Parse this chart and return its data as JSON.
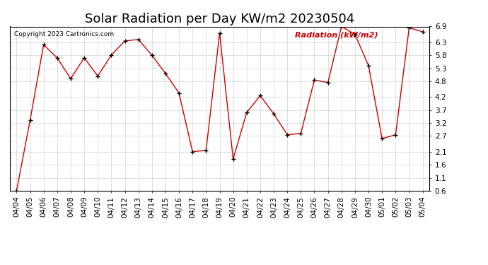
{
  "title": "Solar Radiation per Day KW/m2 20230504",
  "copyright": "Copyright 2023 Cartronics.com",
  "legend_label": "Radiation (kW/m2)",
  "dates": [
    "04/04",
    "04/05",
    "04/06",
    "04/07",
    "04/08",
    "04/09",
    "04/10",
    "04/11",
    "04/12",
    "04/13",
    "04/14",
    "04/15",
    "04/16",
    "04/17",
    "04/18",
    "04/19",
    "04/20",
    "04/21",
    "04/22",
    "04/23",
    "04/24",
    "04/25",
    "04/26",
    "04/27",
    "04/28",
    "04/29",
    "04/30",
    "05/01",
    "05/02",
    "05/03",
    "05/04"
  ],
  "values": [
    0.6,
    3.3,
    6.2,
    5.7,
    4.9,
    5.7,
    5.0,
    5.8,
    6.35,
    6.4,
    5.8,
    5.1,
    4.35,
    2.1,
    2.15,
    6.65,
    1.82,
    3.6,
    4.25,
    3.55,
    2.75,
    2.8,
    4.85,
    4.75,
    6.9,
    6.6,
    5.4,
    2.6,
    2.75,
    6.85,
    6.7
  ],
  "ylim": [
    0.6,
    6.9
  ],
  "yticks": [
    0.6,
    1.1,
    1.6,
    2.1,
    2.7,
    3.2,
    3.7,
    4.2,
    4.8,
    5.3,
    5.8,
    6.3,
    6.9
  ],
  "line_color": "#cc0000",
  "marker_color": "#000000",
  "background_color": "#ffffff",
  "grid_color": "#bbbbbb",
  "title_fontsize": 13,
  "tick_fontsize": 7.5,
  "legend_color": "#cc0000",
  "copyright_color": "#000000",
  "legend_fontsize": 8,
  "copyright_fontsize": 6.5
}
